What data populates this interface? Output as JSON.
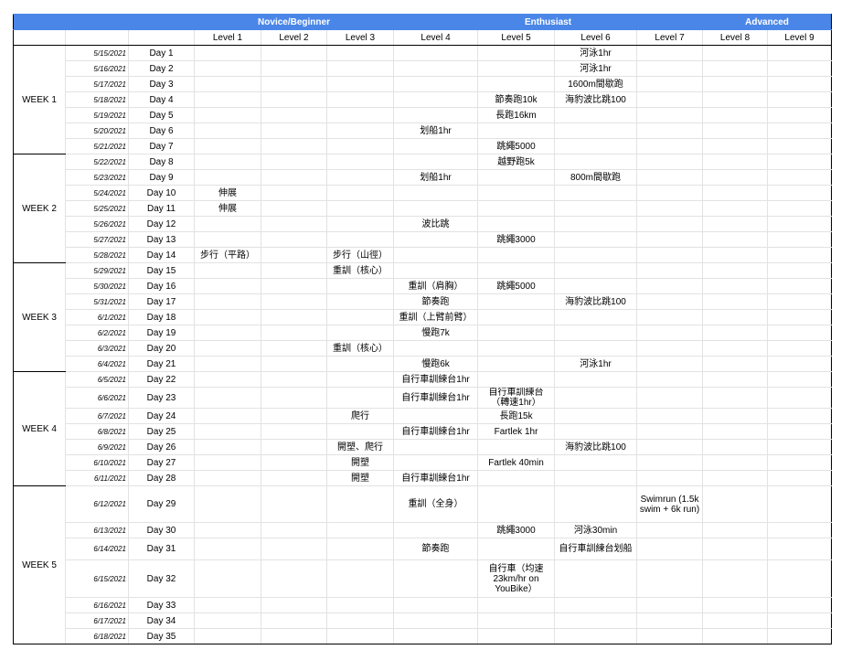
{
  "header": {
    "groups": [
      "Novice/Beginner",
      "Enthusiast",
      "Advanced"
    ],
    "levels": [
      "Level 1",
      "Level 2",
      "Level 3",
      "Level 4",
      "Level 5",
      "Level 6",
      "Level 7",
      "Level 8",
      "Level 9"
    ],
    "accent": "#4a86e8"
  },
  "weeks": [
    {
      "label": "WEEK 1",
      "days": [
        {
          "date": "5/15/2021",
          "day": "Day 1",
          "cells": [
            "",
            "",
            "",
            "",
            "",
            "河泳1hr",
            "",
            "",
            ""
          ]
        },
        {
          "date": "5/16/2021",
          "day": "Day 2",
          "cells": [
            "",
            "",
            "",
            "",
            "",
            "河泳1hr",
            "",
            "",
            ""
          ]
        },
        {
          "date": "5/17/2021",
          "day": "Day 3",
          "cells": [
            "",
            "",
            "",
            "",
            "",
            "1600m間歇跑",
            "",
            "",
            ""
          ]
        },
        {
          "date": "5/18/2021",
          "day": "Day 4",
          "cells": [
            "",
            "",
            "",
            "",
            "節奏跑10k",
            "海豹波比跳100",
            "",
            "",
            ""
          ]
        },
        {
          "date": "5/19/2021",
          "day": "Day 5",
          "cells": [
            "",
            "",
            "",
            "",
            "長跑16km",
            "",
            "",
            "",
            ""
          ]
        },
        {
          "date": "5/20/2021",
          "day": "Day 6",
          "cells": [
            "",
            "",
            "",
            "划船1hr",
            "",
            "",
            "",
            "",
            ""
          ]
        },
        {
          "date": "5/21/2021",
          "day": "Day 7",
          "cells": [
            "",
            "",
            "",
            "",
            "跳繩5000",
            "",
            "",
            "",
            ""
          ]
        }
      ]
    },
    {
      "label": "WEEK 2",
      "days": [
        {
          "date": "5/22/2021",
          "day": "Day 8",
          "cells": [
            "",
            "",
            "",
            "",
            "越野跑5k",
            "",
            "",
            "",
            ""
          ]
        },
        {
          "date": "5/23/2021",
          "day": "Day 9",
          "cells": [
            "",
            "",
            "",
            "划船1hr",
            "",
            "800m間歇跑",
            "",
            "",
            ""
          ]
        },
        {
          "date": "5/24/2021",
          "day": "Day 10",
          "cells": [
            "伸展",
            "",
            "",
            "",
            "",
            "",
            "",
            "",
            ""
          ]
        },
        {
          "date": "5/25/2021",
          "day": "Day 11",
          "cells": [
            "伸展",
            "",
            "",
            "",
            "",
            "",
            "",
            "",
            ""
          ]
        },
        {
          "date": "5/26/2021",
          "day": "Day 12",
          "cells": [
            "",
            "",
            "",
            "波比跳",
            "",
            "",
            "",
            "",
            ""
          ]
        },
        {
          "date": "5/27/2021",
          "day": "Day 13",
          "cells": [
            "",
            "",
            "",
            "",
            "跳繩3000",
            "",
            "",
            "",
            ""
          ]
        },
        {
          "date": "5/28/2021",
          "day": "Day 14",
          "cells": [
            "步行（平路）",
            "",
            "步行（山徑）",
            "",
            "",
            "",
            "",
            "",
            ""
          ]
        }
      ]
    },
    {
      "label": "WEEK 3",
      "days": [
        {
          "date": "5/29/2021",
          "day": "Day 15",
          "cells": [
            "",
            "",
            "重訓（核心）",
            "",
            "",
            "",
            "",
            "",
            ""
          ]
        },
        {
          "date": "5/30/2021",
          "day": "Day 16",
          "cells": [
            "",
            "",
            "",
            "重訓（肩胸）",
            "跳繩5000",
            "",
            "",
            "",
            ""
          ]
        },
        {
          "date": "5/31/2021",
          "day": "Day 17",
          "cells": [
            "",
            "",
            "",
            "節奏跑",
            "",
            "海豹波比跳100",
            "",
            "",
            ""
          ]
        },
        {
          "date": "6/1/2021",
          "day": "Day 18",
          "cells": [
            "",
            "",
            "",
            "重訓（上臂前臂）",
            "",
            "",
            "",
            "",
            ""
          ]
        },
        {
          "date": "6/2/2021",
          "day": "Day 19",
          "cells": [
            "",
            "",
            "",
            "慢跑7k",
            "",
            "",
            "",
            "",
            ""
          ]
        },
        {
          "date": "6/3/2021",
          "day": "Day 20",
          "cells": [
            "",
            "",
            "重訓（核心）",
            "",
            "",
            "",
            "",
            "",
            ""
          ]
        },
        {
          "date": "6/4/2021",
          "day": "Day 21",
          "cells": [
            "",
            "",
            "",
            "慢跑6k",
            "",
            "河泳1hr",
            "",
            "",
            ""
          ]
        }
      ]
    },
    {
      "label": "WEEK 4",
      "days": [
        {
          "date": "6/5/2021",
          "day": "Day 22",
          "cells": [
            "",
            "",
            "",
            "自行車訓練台1hr",
            "",
            "",
            "",
            "",
            ""
          ]
        },
        {
          "date": "6/6/2021",
          "day": "Day 23",
          "cells": [
            "",
            "",
            "",
            "自行車訓練台1hr",
            "自行車訓練台（轉速1hr）",
            "",
            "",
            "",
            ""
          ]
        },
        {
          "date": "6/7/2021",
          "day": "Day 24",
          "cells": [
            "",
            "",
            "爬行",
            "",
            "長跑15k",
            "",
            "",
            "",
            ""
          ]
        },
        {
          "date": "6/8/2021",
          "day": "Day 25",
          "cells": [
            "",
            "",
            "",
            "自行車訓練台1hr",
            "Fartlek 1hr",
            "",
            "",
            "",
            ""
          ]
        },
        {
          "date": "6/9/2021",
          "day": "Day 26",
          "cells": [
            "",
            "",
            "開塑、爬行",
            "",
            "",
            "海豹波比跳100",
            "",
            "",
            ""
          ]
        },
        {
          "date": "6/10/2021",
          "day": "Day 27",
          "cells": [
            "",
            "",
            "開塑",
            "",
            "Fartlek 40min",
            "",
            "",
            "",
            ""
          ]
        },
        {
          "date": "6/11/2021",
          "day": "Day 28",
          "cells": [
            "",
            "",
            "開塑",
            "自行車訓練台1hr",
            "",
            "",
            "",
            "",
            ""
          ]
        }
      ]
    },
    {
      "label": "WEEK 5",
      "days": [
        {
          "date": "6/12/2021",
          "day": "Day 29",
          "cells": [
            "",
            "",
            "",
            "重訓（全身）",
            "",
            "",
            "Swimrun (1.5k swim + 6k run)",
            "",
            ""
          ]
        },
        {
          "date": "6/13/2021",
          "day": "Day 30",
          "cells": [
            "",
            "",
            "",
            "",
            "跳繩3000",
            "河泳30min",
            "",
            "",
            ""
          ]
        },
        {
          "date": "6/14/2021",
          "day": "Day 31",
          "cells": [
            "",
            "",
            "",
            "節奏跑",
            "",
            "自行車訓練台划船",
            "",
            "",
            ""
          ]
        },
        {
          "date": "6/15/2021",
          "day": "Day 32",
          "cells": [
            "",
            "",
            "",
            "",
            "自行車（均速23km/hr on YouBike）",
            "",
            "",
            "",
            ""
          ]
        },
        {
          "date": "6/16/2021",
          "day": "Day 33",
          "cells": [
            "",
            "",
            "",
            "",
            "",
            "",
            "",
            "",
            ""
          ]
        },
        {
          "date": "6/17/2021",
          "day": "Day 34",
          "cells": [
            "",
            "",
            "",
            "",
            "",
            "",
            "",
            "",
            ""
          ]
        },
        {
          "date": "6/18/2021",
          "day": "Day 35",
          "cells": [
            "",
            "",
            "",
            "",
            "",
            "",
            "",
            "",
            ""
          ]
        }
      ]
    }
  ]
}
